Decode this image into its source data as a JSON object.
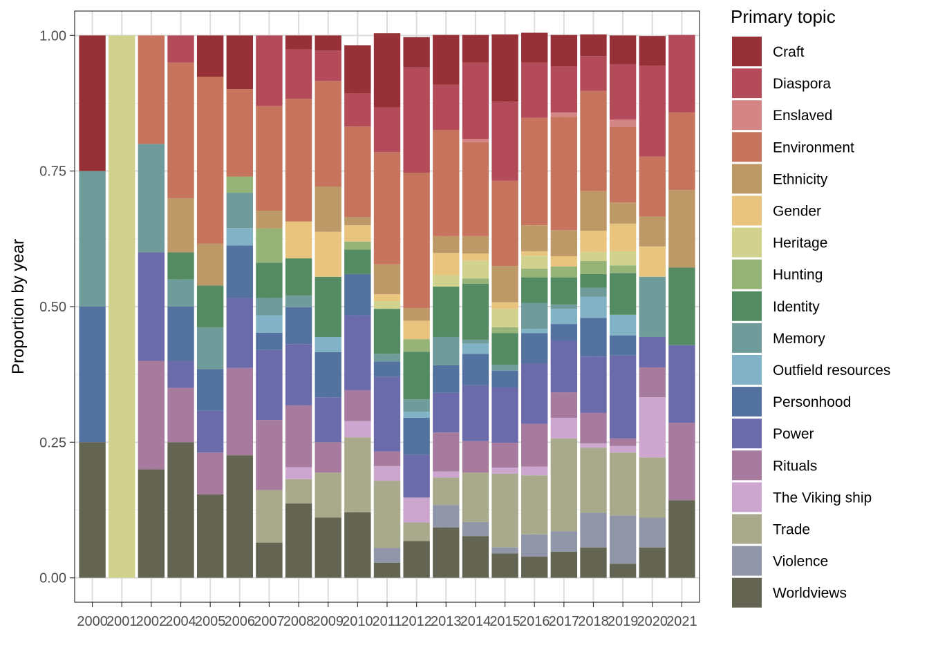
{
  "chart_data": {
    "type": "bar",
    "stacked": true,
    "title": "",
    "xlabel": "",
    "ylabel": "Proportion by year",
    "ylim": [
      -0.045,
      1.045
    ],
    "yticks": [
      0,
      0.25,
      0.5,
      0.75,
      1
    ],
    "ytick_labels": [
      "0.00",
      "0.25",
      "0.50",
      "0.75",
      "1.00"
    ],
    "categories": [
      "2000",
      "2001",
      "2002",
      "2004",
      "2005",
      "2006",
      "2007",
      "2008",
      "2009",
      "2010",
      "2011",
      "2012",
      "2013",
      "2014",
      "2015",
      "2016",
      "2017",
      "2018",
      "2019",
      "2020",
      "2021"
    ],
    "legend": {
      "title": "Primary topic",
      "position": "right"
    },
    "series": [
      {
        "name": "Worldviews",
        "color": "#646452",
        "values": [
          0.25,
          0,
          0.2,
          0.25,
          0.154,
          0.226,
          0.065,
          0.137,
          0.111,
          0.121,
          0.028,
          0.068,
          0.093,
          0.077,
          0.045,
          0.039,
          0.048,
          0.056,
          0.026,
          0.056,
          0.143
        ]
      },
      {
        "name": "Violence",
        "color": "#9096a8",
        "values": [
          0,
          0,
          0,
          0,
          0,
          0,
          0,
          0,
          0,
          0,
          0.027,
          0,
          0.041,
          0.026,
          0.011,
          0.041,
          0.038,
          0.064,
          0.089,
          0.055,
          0
        ]
      },
      {
        "name": "Trade",
        "color": "#a9a98c",
        "values": [
          0,
          0,
          0,
          0,
          0,
          0,
          0.097,
          0.045,
          0.083,
          0.138,
          0.124,
          0.034,
          0.051,
          0.091,
          0.136,
          0.109,
          0.171,
          0.12,
          0.116,
          0.111,
          0
        ]
      },
      {
        "name": "The Viking ship",
        "color": "#cda6d0",
        "values": [
          0,
          0,
          0,
          0,
          0,
          0,
          0,
          0.022,
          0,
          0.03,
          0.027,
          0.046,
          0.011,
          0,
          0.011,
          0.016,
          0.038,
          0.008,
          0.012,
          0.111,
          0
        ]
      },
      {
        "name": "Rituals",
        "color": "#a67b9d",
        "values": [
          0,
          0,
          0.2,
          0.1,
          0.077,
          0.161,
          0.129,
          0.114,
          0.056,
          0.057,
          0.027,
          0,
          0.072,
          0.058,
          0.046,
          0.079,
          0.047,
          0.056,
          0.014,
          0.055,
          0.143
        ]
      },
      {
        "name": "Power",
        "color": "#6b6aab",
        "values": [
          0,
          0,
          0.2,
          0.05,
          0.077,
          0.129,
          0.129,
          0.113,
          0.083,
          0.138,
          0.138,
          0.079,
          0.073,
          0.103,
          0.102,
          0.111,
          0.095,
          0.104,
          0.153,
          0.056,
          0.143
        ]
      },
      {
        "name": "Personhood",
        "color": "#53729f",
        "values": [
          0.25,
          0,
          0,
          0.1,
          0.077,
          0.097,
          0.032,
          0.068,
          0.083,
          0.076,
          0.028,
          0.068,
          0.051,
          0.058,
          0.031,
          0.056,
          0.031,
          0.071,
          0.037,
          0,
          0
        ]
      },
      {
        "name": "Outfield resources",
        "color": "#82b2c5",
        "values": [
          0,
          0,
          0,
          0,
          0,
          0.032,
          0.032,
          0,
          0.028,
          0,
          0,
          0.011,
          0,
          0.019,
          0,
          0.008,
          0.028,
          0.039,
          0.038,
          0,
          0
        ]
      },
      {
        "name": "Memory",
        "color": "#6f9c9a",
        "values": [
          0.25,
          0,
          0.2,
          0.05,
          0.077,
          0.065,
          0.032,
          0.022,
          0,
          0,
          0.014,
          0.023,
          0.052,
          0.007,
          0.011,
          0.048,
          0.008,
          0.017,
          0,
          0.111,
          0
        ]
      },
      {
        "name": "Identity",
        "color": "#548b63",
        "values": [
          0,
          0,
          0,
          0.05,
          0.077,
          0,
          0.065,
          0.068,
          0.111,
          0.045,
          0.083,
          0.088,
          0.093,
          0.103,
          0.058,
          0.047,
          0.05,
          0.025,
          0.077,
          0,
          0.143
        ]
      },
      {
        "name": "Hunting",
        "color": "#96b478",
        "values": [
          0,
          0,
          0,
          0,
          0,
          0.03,
          0.063,
          0,
          0,
          0.015,
          0,
          0.023,
          0,
          0.01,
          0.011,
          0.016,
          0.02,
          0.024,
          0.014,
          0,
          0
        ]
      },
      {
        "name": "Heritage",
        "color": "#d1d28d",
        "values": [
          0,
          1,
          0,
          0,
          0,
          0,
          0,
          0,
          0,
          0,
          0.014,
          0,
          0.021,
          0.033,
          0.034,
          0.024,
          0,
          0.017,
          0.026,
          0,
          0
        ]
      },
      {
        "name": "Gender",
        "color": "#e8c47e",
        "values": [
          0,
          0,
          0,
          0,
          0,
          0,
          0,
          0.068,
          0.083,
          0.03,
          0.013,
          0.034,
          0.041,
          0.013,
          0.012,
          0.008,
          0.019,
          0.039,
          0.051,
          0.056,
          0
        ]
      },
      {
        "name": "Ethnicity",
        "color": "#bd9968",
        "values": [
          0,
          0,
          0,
          0.1,
          0.077,
          0,
          0.033,
          0,
          0.083,
          0.015,
          0.055,
          0.023,
          0.031,
          0.032,
          0.067,
          0.048,
          0.048,
          0.073,
          0.039,
          0.055,
          0.143
        ]
      },
      {
        "name": "Environment",
        "color": "#c6745d",
        "values": [
          0,
          0,
          0.2,
          0.25,
          0.308,
          0.161,
          0.193,
          0.226,
          0.195,
          0.167,
          0.207,
          0.25,
          0.196,
          0.173,
          0.157,
          0.198,
          0.209,
          0.185,
          0.14,
          0.111,
          0.143
        ]
      },
      {
        "name": "Enslaved",
        "color": "#d48586",
        "values": [
          0,
          0,
          0,
          0,
          0,
          0,
          0,
          0,
          0,
          0,
          0,
          0,
          0,
          0.006,
          0,
          0,
          0.008,
          0,
          0.013,
          0,
          0
        ]
      },
      {
        "name": "Diaspora",
        "color": "#b44b5b",
        "values": [
          0,
          0,
          0,
          0.05,
          0,
          0,
          0.13,
          0.091,
          0.056,
          0.061,
          0.082,
          0.194,
          0.083,
          0.141,
          0.146,
          0.102,
          0.085,
          0.064,
          0.102,
          0.167,
          0.143
        ]
      },
      {
        "name": "Craft",
        "color": "#963237",
        "values": [
          0.25,
          0,
          0,
          0,
          0.076,
          0.099,
          0,
          0.026,
          0.028,
          0.089,
          0.137,
          0.056,
          0.092,
          0.051,
          0.124,
          0.055,
          0.058,
          0.04,
          0.053,
          0.055,
          0
        ]
      }
    ]
  }
}
